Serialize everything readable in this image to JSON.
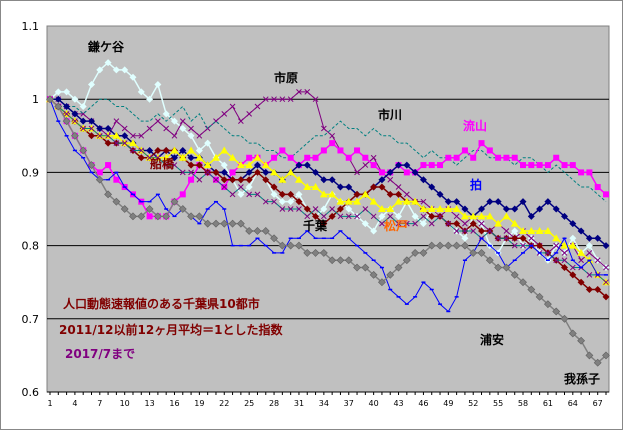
{
  "chart_data": {
    "type": "line",
    "ylim": [
      0.6,
      1.1
    ],
    "yticks": [
      "1.1",
      "1",
      "0.9",
      "0.8",
      "0.7",
      "0.6"
    ],
    "xticks": [
      "1",
      "4",
      "7",
      "10",
      "13",
      "16",
      "19",
      "22",
      "25",
      "28",
      "31",
      "34",
      "37",
      "40",
      "43",
      "46",
      "49",
      "52",
      "55",
      "58",
      "61",
      "64",
      "67"
    ],
    "x": [
      1,
      2,
      3,
      4,
      5,
      6,
      7,
      8,
      9,
      10,
      11,
      12,
      13,
      14,
      15,
      16,
      17,
      18,
      19,
      20,
      21,
      22,
      23,
      24,
      25,
      26,
      27,
      28,
      29,
      30,
      31,
      32,
      33,
      34,
      35,
      36,
      37,
      38,
      39,
      40,
      41,
      42,
      43,
      44,
      45,
      46,
      47,
      48,
      49,
      50,
      51,
      52,
      53,
      54,
      55,
      56,
      57,
      58,
      59,
      60,
      61,
      62,
      63,
      64,
      65,
      66,
      67,
      68
    ],
    "colors": {
      "plot_background": "#c0c0c0",
      "gridline": "#000000"
    },
    "grid": "horizontal",
    "annotation_lines": [
      "人口動態速報値のある千葉県10都市",
      "2011/12以前12ヶ月平均＝1とした指数",
      "2017/7まで"
    ],
    "series": [
      {
        "name": "鎌ケ谷",
        "color": "#e0ffff",
        "values": [
          1.0,
          1.01,
          1.01,
          1.0,
          0.99,
          1.02,
          1.04,
          1.05,
          1.04,
          1.04,
          1.03,
          1.01,
          1.0,
          1.02,
          0.98,
          0.97,
          0.96,
          0.95,
          0.93,
          0.94,
          0.92,
          0.91,
          0.89,
          0.87,
          0.88,
          0.9,
          0.89,
          0.87,
          0.86,
          0.86,
          0.87,
          0.85,
          0.84,
          0.85,
          0.87,
          0.86,
          0.85,
          0.84,
          0.83,
          0.82,
          0.84,
          0.85,
          0.84,
          0.86,
          0.84,
          0.83,
          0.85,
          0.84,
          0.83,
          0.82,
          0.81,
          0.84,
          0.83,
          0.8,
          0.79,
          0.81,
          0.82,
          0.8,
          0.81,
          0.79,
          0.78,
          0.8,
          0.79,
          0.81,
          0.79,
          0.8,
          0.78,
          0.77
        ]
      },
      {
        "name": "市原",
        "color": "#800080",
        "values": [
          1.0,
          1.0,
          0.99,
          0.98,
          0.98,
          0.97,
          0.96,
          0.95,
          0.97,
          0.96,
          0.95,
          0.95,
          0.96,
          0.97,
          0.96,
          0.95,
          0.97,
          0.96,
          0.95,
          0.96,
          0.97,
          0.98,
          0.99,
          0.97,
          0.98,
          0.99,
          1.0,
          1.0,
          1.0,
          1.0,
          1.01,
          1.01,
          1.0,
          0.96,
          0.95,
          0.93,
          0.92,
          0.9,
          0.91,
          0.92,
          0.9,
          0.89,
          0.88,
          0.87,
          0.86,
          0.86,
          0.85,
          0.84,
          0.85,
          0.84,
          0.83,
          0.84,
          0.83,
          0.82,
          0.83,
          0.82,
          0.81,
          0.82,
          0.81,
          0.8,
          0.79,
          0.8,
          0.79,
          0.8,
          0.78,
          0.79,
          0.78,
          0.77
        ]
      },
      {
        "name": "市川",
        "color": "#008080",
        "values": [
          1.0,
          1.0,
          0.99,
          0.99,
          0.98,
          0.99,
          1.0,
          1.0,
          0.99,
          0.99,
          0.98,
          0.97,
          0.97,
          0.98,
          0.97,
          0.98,
          0.99,
          0.97,
          0.98,
          0.96,
          0.97,
          0.96,
          0.95,
          0.95,
          0.94,
          0.94,
          0.93,
          0.93,
          0.92,
          0.92,
          0.93,
          0.94,
          0.95,
          0.95,
          0.96,
          0.97,
          0.96,
          0.96,
          0.95,
          0.96,
          0.95,
          0.95,
          0.94,
          0.94,
          0.93,
          0.92,
          0.93,
          0.92,
          0.92,
          0.91,
          0.92,
          0.93,
          0.93,
          0.92,
          0.92,
          0.92,
          0.91,
          0.92,
          0.92,
          0.91,
          0.9,
          0.91,
          0.9,
          0.89,
          0.88,
          0.88,
          0.87,
          0.86
        ]
      },
      {
        "name": "流山",
        "color": "#ff00ff",
        "values": [
          1.0,
          0.99,
          0.97,
          0.95,
          0.93,
          0.91,
          0.9,
          0.91,
          0.89,
          0.88,
          0.87,
          0.86,
          0.84,
          0.84,
          0.84,
          0.86,
          0.87,
          0.89,
          0.91,
          0.9,
          0.89,
          0.88,
          0.9,
          0.91,
          0.92,
          0.92,
          0.91,
          0.92,
          0.93,
          0.92,
          0.91,
          0.92,
          0.92,
          0.93,
          0.94,
          0.93,
          0.92,
          0.93,
          0.92,
          0.91,
          0.9,
          0.9,
          0.91,
          0.9,
          0.9,
          0.91,
          0.91,
          0.91,
          0.92,
          0.92,
          0.93,
          0.92,
          0.94,
          0.93,
          0.92,
          0.92,
          0.92,
          0.91,
          0.91,
          0.91,
          0.91,
          0.92,
          0.91,
          0.91,
          0.9,
          0.9,
          0.88,
          0.87
        ]
      },
      {
        "name": "拍",
        "color": "#000080",
        "values": [
          1.0,
          1.0,
          0.99,
          0.98,
          0.97,
          0.97,
          0.96,
          0.96,
          0.95,
          0.95,
          0.94,
          0.93,
          0.93,
          0.92,
          0.93,
          0.92,
          0.93,
          0.92,
          0.92,
          0.91,
          0.9,
          0.9,
          0.89,
          0.89,
          0.9,
          0.91,
          0.9,
          0.9,
          0.89,
          0.9,
          0.91,
          0.91,
          0.9,
          0.89,
          0.89,
          0.88,
          0.88,
          0.87,
          0.87,
          0.88,
          0.89,
          0.9,
          0.91,
          0.91,
          0.9,
          0.89,
          0.88,
          0.87,
          0.86,
          0.86,
          0.85,
          0.84,
          0.85,
          0.86,
          0.86,
          0.85,
          0.85,
          0.86,
          0.84,
          0.85,
          0.86,
          0.85,
          0.84,
          0.83,
          0.82,
          0.81,
          0.81,
          0.8
        ]
      },
      {
        "name": "船橋",
        "color": "#800000",
        "values": [
          1.0,
          0.99,
          0.98,
          0.97,
          0.96,
          0.95,
          0.95,
          0.94,
          0.94,
          0.94,
          0.93,
          0.92,
          0.92,
          0.93,
          0.93,
          0.93,
          0.92,
          0.91,
          0.91,
          0.9,
          0.9,
          0.89,
          0.89,
          0.89,
          0.89,
          0.9,
          0.89,
          0.88,
          0.87,
          0.87,
          0.86,
          0.85,
          0.84,
          0.83,
          0.84,
          0.85,
          0.86,
          0.87,
          0.87,
          0.88,
          0.88,
          0.87,
          0.87,
          0.86,
          0.86,
          0.85,
          0.84,
          0.84,
          0.83,
          0.83,
          0.82,
          0.83,
          0.82,
          0.82,
          0.81,
          0.81,
          0.81,
          0.81,
          0.8,
          0.8,
          0.79,
          0.78,
          0.77,
          0.76,
          0.75,
          0.74,
          0.74,
          0.73
        ]
      },
      {
        "name": "千葉",
        "color": "#ffff00",
        "values": [
          1.0,
          0.99,
          0.98,
          0.97,
          0.96,
          0.96,
          0.95,
          0.95,
          0.95,
          0.94,
          0.94,
          0.93,
          0.92,
          0.92,
          0.92,
          0.93,
          0.92,
          0.93,
          0.92,
          0.91,
          0.92,
          0.93,
          0.92,
          0.91,
          0.91,
          0.92,
          0.91,
          0.9,
          0.89,
          0.9,
          0.89,
          0.88,
          0.88,
          0.87,
          0.87,
          0.86,
          0.86,
          0.86,
          0.87,
          0.86,
          0.85,
          0.85,
          0.86,
          0.86,
          0.86,
          0.85,
          0.85,
          0.85,
          0.85,
          0.85,
          0.84,
          0.84,
          0.84,
          0.84,
          0.83,
          0.84,
          0.83,
          0.82,
          0.82,
          0.82,
          0.82,
          0.81,
          0.8,
          0.8,
          0.79,
          0.78,
          0.76,
          0.75
        ]
      },
      {
        "name": "松戸",
        "color": "#008080",
        "values": [
          1.0,
          0.99,
          0.98,
          0.97,
          0.96,
          0.96,
          0.95,
          0.95,
          0.94,
          0.94,
          0.93,
          0.93,
          0.92,
          0.92,
          0.91,
          0.91,
          0.9,
          0.9,
          0.89,
          0.9,
          0.89,
          0.88,
          0.87,
          0.88,
          0.87,
          0.87,
          0.86,
          0.86,
          0.85,
          0.85,
          0.85,
          0.84,
          0.85,
          0.84,
          0.85,
          0.84,
          0.84,
          0.84,
          0.85,
          0.84,
          0.83,
          0.84,
          0.83,
          0.83,
          0.83,
          0.84,
          0.83,
          0.84,
          0.83,
          0.82,
          0.82,
          0.82,
          0.81,
          0.82,
          0.81,
          0.81,
          0.8,
          0.8,
          0.8,
          0.79,
          0.79,
          0.78,
          0.78,
          0.77,
          0.77,
          0.76,
          0.76,
          0.75
        ]
      },
      {
        "name": "浦安",
        "color": "#0000ff",
        "values": [
          1.0,
          0.97,
          0.95,
          0.93,
          0.92,
          0.9,
          0.89,
          0.89,
          0.9,
          0.88,
          0.87,
          0.86,
          0.86,
          0.87,
          0.85,
          0.84,
          0.85,
          0.84,
          0.83,
          0.85,
          0.86,
          0.85,
          0.8,
          0.8,
          0.8,
          0.81,
          0.8,
          0.79,
          0.79,
          0.81,
          0.81,
          0.82,
          0.81,
          0.81,
          0.81,
          0.82,
          0.81,
          0.8,
          0.79,
          0.78,
          0.77,
          0.74,
          0.73,
          0.72,
          0.73,
          0.75,
          0.74,
          0.72,
          0.71,
          0.73,
          0.78,
          0.79,
          0.81,
          0.8,
          0.79,
          0.77,
          0.78,
          0.79,
          0.8,
          0.79,
          0.78,
          0.79,
          0.81,
          0.78,
          0.77,
          0.78,
          0.76,
          0.76
        ]
      },
      {
        "name": "我孫子",
        "color": "#808080",
        "values": [
          1.0,
          0.99,
          0.97,
          0.95,
          0.93,
          0.91,
          0.89,
          0.87,
          0.86,
          0.85,
          0.84,
          0.84,
          0.85,
          0.84,
          0.84,
          0.86,
          0.85,
          0.84,
          0.84,
          0.83,
          0.83,
          0.83,
          0.83,
          0.83,
          0.82,
          0.82,
          0.82,
          0.81,
          0.8,
          0.8,
          0.8,
          0.79,
          0.79,
          0.79,
          0.78,
          0.78,
          0.78,
          0.77,
          0.77,
          0.76,
          0.75,
          0.76,
          0.77,
          0.78,
          0.79,
          0.79,
          0.8,
          0.8,
          0.8,
          0.8,
          0.8,
          0.79,
          0.79,
          0.78,
          0.77,
          0.77,
          0.76,
          0.75,
          0.74,
          0.73,
          0.72,
          0.71,
          0.7,
          0.68,
          0.67,
          0.65,
          0.64,
          0.65
        ]
      }
    ]
  }
}
